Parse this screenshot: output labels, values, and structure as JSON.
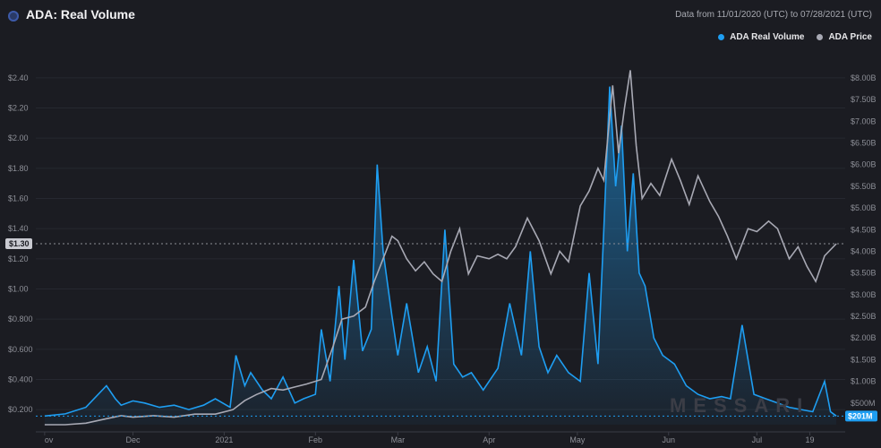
{
  "header": {
    "title": "ADA: Real Volume",
    "date_range": "Data from 11/01/2020 (UTC) to 07/28/2021 (UTC)"
  },
  "legend": [
    {
      "label": "ADA Real Volume",
      "color": "#1e9ef2"
    },
    {
      "label": "ADA Price",
      "color": "#a8a9b4"
    }
  ],
  "watermark": "MESSARI",
  "markers": {
    "price_current": "$1.30",
    "volume_current": "$201M"
  },
  "chart_data": {
    "type": "line",
    "x_labels": [
      "ov",
      "Dec",
      "2021",
      "Feb",
      "Mar",
      "Apr",
      "May",
      "Jun",
      "Jul",
      "19"
    ],
    "y_left": {
      "label": "",
      "ticks": [
        "$0.200",
        "$0.400",
        "$0.600",
        "$0.800",
        "$1.00",
        "$1.20",
        "$1.40",
        "$1.60",
        "$1.80",
        "$2.00",
        "$2.20",
        "$2.40"
      ],
      "range": [
        0.1,
        2.5
      ]
    },
    "y_right": {
      "label": "",
      "ticks": [
        "$500M",
        "$1.00B",
        "$1.50B",
        "$2.00B",
        "$2.50B",
        "$3.00B",
        "$3.50B",
        "$4.00B",
        "$4.50B",
        "$5.00B",
        "$5.50B",
        "$6.00B",
        "$6.50B",
        "$7.00B",
        "$7.50B",
        "$8.00B"
      ],
      "range": [
        0,
        8.35
      ]
    },
    "series": [
      {
        "name": "ADA Price",
        "axis": "left",
        "color": "#a8a9b4",
        "x": [
          "2020-11-01",
          "2020-11-08",
          "2020-11-15",
          "2020-11-22",
          "2020-11-27",
          "2020-12-01",
          "2020-12-08",
          "2020-12-15",
          "2020-12-22",
          "2020-12-29",
          "2021-01-04",
          "2021-01-08",
          "2021-01-12",
          "2021-01-17",
          "2021-01-21",
          "2021-01-25",
          "2021-01-29",
          "2021-02-03",
          "2021-02-07",
          "2021-02-10",
          "2021-02-14",
          "2021-02-18",
          "2021-02-21",
          "2021-02-24",
          "2021-02-27",
          "2021-03-01",
          "2021-03-04",
          "2021-03-07",
          "2021-03-10",
          "2021-03-13",
          "2021-03-16",
          "2021-03-19",
          "2021-03-22",
          "2021-03-25",
          "2021-03-28",
          "2021-04-01",
          "2021-04-04",
          "2021-04-07",
          "2021-04-10",
          "2021-04-14",
          "2021-04-18",
          "2021-04-22",
          "2021-04-25",
          "2021-04-28",
          "2021-05-02",
          "2021-05-05",
          "2021-05-08",
          "2021-05-10",
          "2021-05-13",
          "2021-05-15",
          "2021-05-17",
          "2021-05-19",
          "2021-05-21",
          "2021-05-23",
          "2021-05-26",
          "2021-05-29",
          "2021-06-02",
          "2021-06-05",
          "2021-06-08",
          "2021-06-11",
          "2021-06-15",
          "2021-06-18",
          "2021-06-21",
          "2021-06-24",
          "2021-06-28",
          "2021-07-01",
          "2021-07-05",
          "2021-07-08",
          "2021-07-12",
          "2021-07-15",
          "2021-07-18",
          "2021-07-21",
          "2021-07-24",
          "2021-07-28"
        ],
        "values": [
          0.1,
          0.1,
          0.11,
          0.14,
          0.16,
          0.15,
          0.16,
          0.15,
          0.17,
          0.17,
          0.2,
          0.26,
          0.3,
          0.34,
          0.33,
          0.35,
          0.37,
          0.4,
          0.62,
          0.8,
          0.82,
          0.88,
          1.05,
          1.2,
          1.35,
          1.32,
          1.2,
          1.12,
          1.18,
          1.1,
          1.05,
          1.25,
          1.4,
          1.1,
          1.22,
          1.2,
          1.23,
          1.2,
          1.28,
          1.47,
          1.32,
          1.1,
          1.25,
          1.18,
          1.55,
          1.65,
          1.8,
          1.72,
          2.35,
          1.9,
          2.2,
          2.45,
          1.95,
          1.6,
          1.7,
          1.62,
          1.86,
          1.72,
          1.56,
          1.75,
          1.58,
          1.48,
          1.35,
          1.2,
          1.4,
          1.38,
          1.45,
          1.4,
          1.2,
          1.28,
          1.15,
          1.05,
          1.22,
          1.3
        ]
      },
      {
        "name": "ADA Real Volume",
        "axis": "right",
        "color": "#1e9ef2",
        "x": [
          "2020-11-01",
          "2020-11-08",
          "2020-11-15",
          "2020-11-22",
          "2020-11-25",
          "2020-11-27",
          "2020-12-01",
          "2020-12-05",
          "2020-12-10",
          "2020-12-15",
          "2020-12-20",
          "2020-12-25",
          "2020-12-29",
          "2021-01-03",
          "2021-01-05",
          "2021-01-08",
          "2021-01-10",
          "2021-01-14",
          "2021-01-17",
          "2021-01-21",
          "2021-01-25",
          "2021-01-28",
          "2021-02-01",
          "2021-02-03",
          "2021-02-06",
          "2021-02-09",
          "2021-02-11",
          "2021-02-14",
          "2021-02-17",
          "2021-02-20",
          "2021-02-22",
          "2021-02-24",
          "2021-02-27",
          "2021-03-01",
          "2021-03-04",
          "2021-03-08",
          "2021-03-11",
          "2021-03-14",
          "2021-03-17",
          "2021-03-20",
          "2021-03-23",
          "2021-03-26",
          "2021-03-30",
          "2021-04-04",
          "2021-04-08",
          "2021-04-12",
          "2021-04-15",
          "2021-04-18",
          "2021-04-21",
          "2021-04-24",
          "2021-04-28",
          "2021-05-02",
          "2021-05-05",
          "2021-05-08",
          "2021-05-10",
          "2021-05-12",
          "2021-05-14",
          "2021-05-16",
          "2021-05-18",
          "2021-05-20",
          "2021-05-22",
          "2021-05-24",
          "2021-05-27",
          "2021-05-30",
          "2021-06-03",
          "2021-06-07",
          "2021-06-11",
          "2021-06-15",
          "2021-06-19",
          "2021-06-22",
          "2021-06-26",
          "2021-06-30",
          "2021-07-04",
          "2021-07-08",
          "2021-07-12",
          "2021-07-16",
          "2021-07-20",
          "2021-07-24",
          "2021-07-26",
          "2021-07-28"
        ],
        "values": [
          0.2,
          0.25,
          0.4,
          0.9,
          0.6,
          0.45,
          0.55,
          0.5,
          0.4,
          0.45,
          0.35,
          0.45,
          0.6,
          0.4,
          1.6,
          0.9,
          1.2,
          0.8,
          0.6,
          1.1,
          0.5,
          0.6,
          0.7,
          2.2,
          1.0,
          3.2,
          1.5,
          3.8,
          1.7,
          2.2,
          6.0,
          4.0,
          2.5,
          1.6,
          2.8,
          1.2,
          1.8,
          1.0,
          4.5,
          1.4,
          1.1,
          1.2,
          0.8,
          1.3,
          2.8,
          1.6,
          4.0,
          1.8,
          1.2,
          1.6,
          1.2,
          1.0,
          3.5,
          1.4,
          4.5,
          7.8,
          5.5,
          6.9,
          4.0,
          5.8,
          3.5,
          3.2,
          2.0,
          1.6,
          1.4,
          0.9,
          0.7,
          0.6,
          0.65,
          0.6,
          2.3,
          0.7,
          0.6,
          0.5,
          0.4,
          0.35,
          0.3,
          1.0,
          0.3,
          0.2
        ]
      }
    ]
  }
}
